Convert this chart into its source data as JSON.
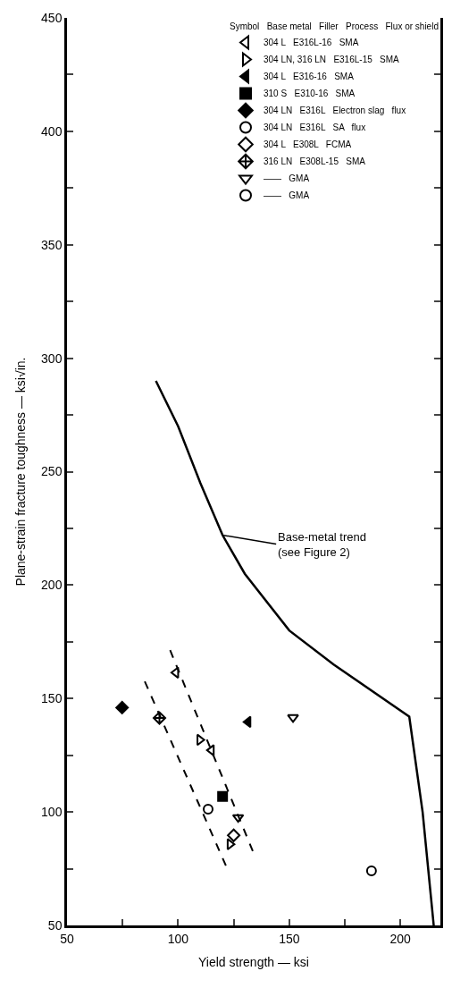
{
  "chart_data": {
    "type": "scatter",
    "xlabel": "Yield strength — ksi",
    "ylabel": "Plane-strain fracture toughness — ksi√in.",
    "legend_title": "Symbol   Base metal   Filler   Process   Flux or shield",
    "xlim": [
      50,
      218
    ],
    "ylim": [
      50,
      450
    ],
    "xticks": [
      50,
      {
        "value": 75,
        "label": null
      },
      100,
      {
        "value": 125,
        "label": null
      },
      150,
      {
        "value": 175,
        "label": null
      },
      200
    ],
    "yticks": [
      50,
      {
        "value": 75,
        "label": null
      },
      100,
      {
        "value": 125,
        "label": null
      },
      150,
      {
        "value": 175,
        "label": null
      },
      200,
      {
        "value": 225,
        "label": null
      },
      250,
      {
        "value": 275,
        "label": null
      },
      300,
      {
        "value": 325,
        "label": null
      },
      350,
      {
        "value": 375,
        "label": null
      },
      400,
      {
        "value": 425,
        "label": null
      },
      450
    ],
    "legend": "top right",
    "annotations": [
      {
        "text": "Base-metal trend\n(see Figure 2)",
        "x": 120,
        "y": 222
      }
    ],
    "series": [
      {
        "name": "304 L   E316L-16   SMA",
        "color": "#000000",
        "marker": "triangle-left-open",
        "x": [
          99,
          115
        ],
        "values": [
          161.4,
          127.2
        ]
      },
      {
        "name": "304 LN, 316 LN   E316L-15   SMA",
        "color": "#000000",
        "marker": "triangle-right-open",
        "x": [
          109.7,
          123.3
        ],
        "values": [
          131.8,
          85.8
        ]
      },
      {
        "name": "304 L   E316-16   SMA",
        "color": "#000000",
        "marker": "triangle-left",
        "x": [
          131.5
        ],
        "values": [
          139.7
        ]
      },
      {
        "name": "310 S   E310-16   SMA",
        "color": "#000000",
        "marker": "square",
        "x": [
          120
        ],
        "values": [
          106.8
        ]
      },
      {
        "name": "304 LN   E316L   Electron slag   flux",
        "color": "#000000",
        "marker": "diamond",
        "x": [
          74.8
        ],
        "values": [
          146
        ]
      },
      {
        "name": "304 LN   E316L   SA   flux",
        "color": "#000000",
        "marker": "circle-open",
        "x": [
          113.5
        ],
        "values": [
          101.2
        ]
      },
      {
        "name": "304 L   E308L   FCMA",
        "color": "#000000",
        "marker": "diamond-open",
        "x": [
          125
        ],
        "values": [
          89.7
        ]
      },
      {
        "name": "316 LN   E308L-15   SMA",
        "color": "#000000",
        "marker": "diamond-cross-open",
        "x": [
          91.6
        ],
        "values": [
          141.4
        ]
      },
      {
        "name": "——   GMA",
        "color": "#000000",
        "marker": "triangle-down-open",
        "x": [
          151.7,
          127
        ],
        "values": [
          141.7,
          97.6
        ]
      },
      {
        "name": "——   GMA",
        "color": "#000000",
        "marker": "circle-open",
        "x": [
          187
        ],
        "values": [
          74
        ]
      },
      {
        "type": "line",
        "color": "#000000",
        "line_style": "solid",
        "x": [
          90,
          100,
          110,
          120,
          130,
          150,
          170,
          204,
          210,
          215
        ],
        "values": [
          290,
          270,
          245,
          222,
          205,
          180,
          165,
          142,
          100,
          50
        ]
      },
      {
        "type": "line",
        "color": "#000000",
        "line_style": "dashed",
        "x": [
          85,
          121.7
        ],
        "values": [
          157.5,
          75.9
        ]
      },
      {
        "type": "line",
        "color": "#000000",
        "line_style": "dashed",
        "x": [
          96.4,
          133.7
        ],
        "values": [
          171.3,
          82.5
        ]
      }
    ]
  }
}
